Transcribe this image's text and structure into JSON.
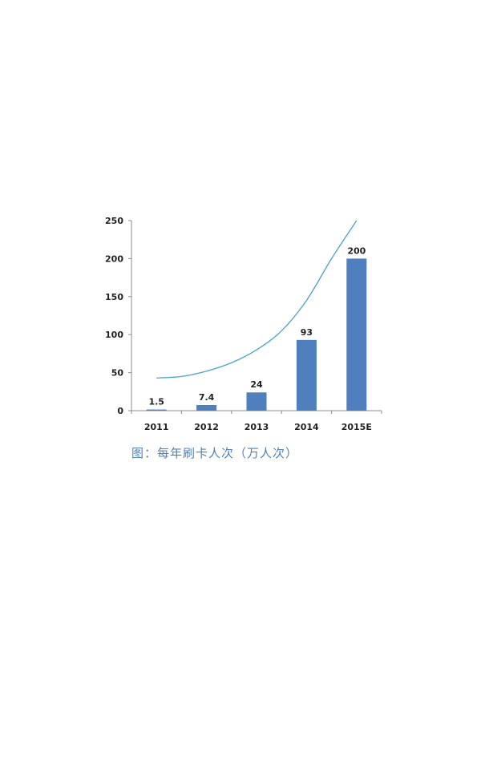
{
  "caption": "图：每年刷卡人次（万人次）",
  "colors": {
    "bar": "#4f7fbd",
    "curve": "#4aa3c8",
    "axis": "#8c8c8c",
    "caption": "#4f81bd"
  },
  "chart_data": {
    "type": "bar",
    "title": "",
    "xlabel": "",
    "ylabel": "",
    "categories": [
      "2011",
      "2012",
      "2013",
      "2014",
      "2015E"
    ],
    "values": [
      1.5,
      7.4,
      24,
      93,
      200
    ],
    "data_labels": [
      "1.5",
      "7.4",
      "24",
      "93",
      "200"
    ],
    "ylim": [
      0,
      250
    ],
    "yticks": [
      0,
      50,
      100,
      150,
      200,
      250
    ],
    "grid": false,
    "legend": "none",
    "trend_curve": {
      "shape": "exponential",
      "x": [
        0,
        0.5,
        1,
        1.5,
        2,
        2.5,
        3,
        3.5,
        4
      ],
      "y": [
        43,
        45,
        52,
        63,
        80,
        105,
        145,
        200,
        250
      ]
    }
  }
}
